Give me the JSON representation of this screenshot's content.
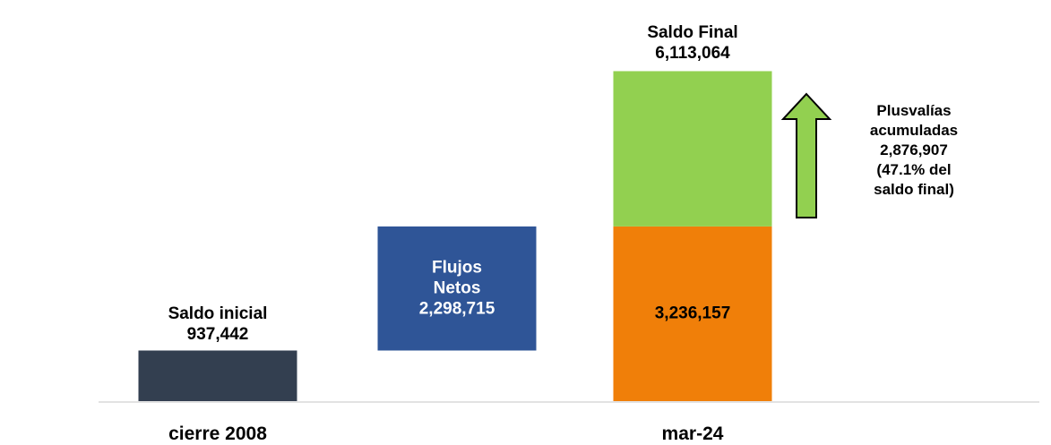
{
  "chart_data": {
    "type": "waterfall",
    "categories": [
      "cierre 2008",
      null,
      "mar-24"
    ],
    "ylim": [
      0,
      7000000
    ],
    "steps": [
      {
        "label": "Saldo inicial",
        "value": 937442,
        "value_label": "937,442",
        "color": "#333f50"
      },
      {
        "label": "Flujos Netos",
        "value": 2298715,
        "value_label": "2,298,715",
        "color": "#2f5597"
      },
      {
        "value": 3236157,
        "value_label": "3,236,157",
        "color": "#f07f09"
      },
      {
        "label": "Plusvalías acumuladas",
        "value": 2876907,
        "value_label": "2,876,907",
        "note": "(47.1% del saldo final)",
        "color": "#92d050"
      }
    ],
    "total": {
      "label": "Saldo Final",
      "value": 6113064,
      "value_label": "6,113,064"
    }
  }
}
